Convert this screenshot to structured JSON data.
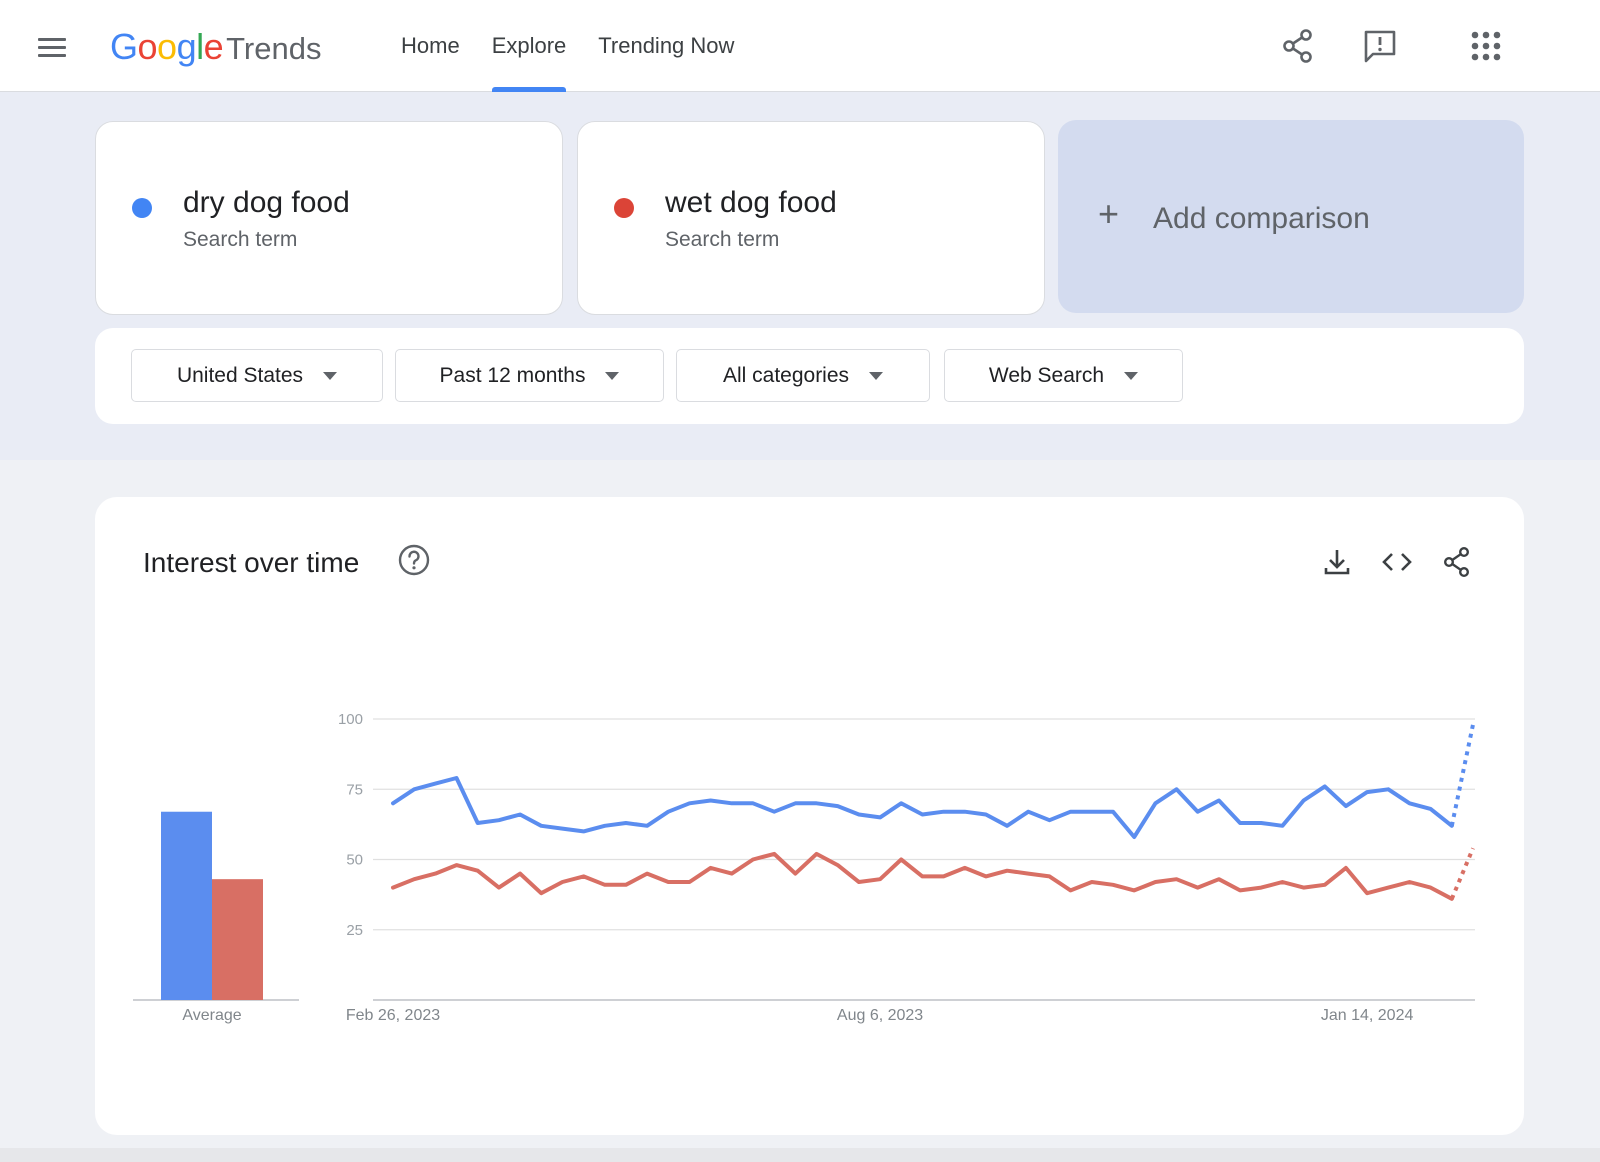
{
  "header": {
    "logo_google": "Google",
    "logo_trends": "Trends",
    "nav": [
      "Home",
      "Explore",
      "Trending Now"
    ],
    "active_nav": "Explore",
    "icons": [
      "menu-icon",
      "share-icon",
      "feedback-icon",
      "apps-icon"
    ]
  },
  "terms": [
    {
      "name": "dry dog food",
      "sub": "Search term",
      "color": "#4285f4"
    },
    {
      "name": "wet dog food",
      "sub": "Search term",
      "color": "#db4437"
    }
  ],
  "add_comparison": {
    "plus": "+",
    "label": "Add comparison"
  },
  "filters": [
    "United States",
    "Past 12 months",
    "All categories",
    "Web Search"
  ],
  "chart": {
    "title": "Interest over time",
    "tools": [
      "download-icon",
      "embed-icon",
      "share-icon"
    ]
  },
  "chart_data": {
    "type": "line",
    "title": "Interest over time",
    "ylim": [
      0,
      100
    ],
    "yticks": [
      25,
      50,
      75,
      100
    ],
    "xtick_labels": [
      "Feb 26, 2023",
      "Aug 6, 2023",
      "Jan 14, 2024"
    ],
    "grid": true,
    "average_label": "Average",
    "series": [
      {
        "name": "dry dog food",
        "color": "#5b8def",
        "average": 67,
        "values": [
          70,
          75,
          77,
          79,
          63,
          64,
          66,
          62,
          61,
          60,
          62,
          63,
          62,
          67,
          70,
          71,
          70,
          70,
          67,
          70,
          70,
          69,
          66,
          65,
          70,
          66,
          67,
          67,
          66,
          62,
          67,
          64,
          67,
          67,
          67,
          58,
          70,
          75,
          67,
          71,
          63,
          63,
          62,
          71,
          76,
          69,
          74,
          75,
          70,
          68,
          62,
          98
        ],
        "partial_last": true
      },
      {
        "name": "wet dog food",
        "color": "#d86f64",
        "average": 43,
        "values": [
          40,
          43,
          45,
          48,
          46,
          40,
          45,
          38,
          42,
          44,
          41,
          41,
          45,
          42,
          42,
          47,
          45,
          50,
          52,
          45,
          52,
          48,
          42,
          43,
          50,
          44,
          44,
          47,
          44,
          46,
          45,
          44,
          39,
          42,
          41,
          39,
          42,
          43,
          40,
          43,
          39,
          40,
          42,
          40,
          41,
          47,
          38,
          40,
          42,
          40,
          36,
          54
        ],
        "partial_last": true
      }
    ]
  }
}
